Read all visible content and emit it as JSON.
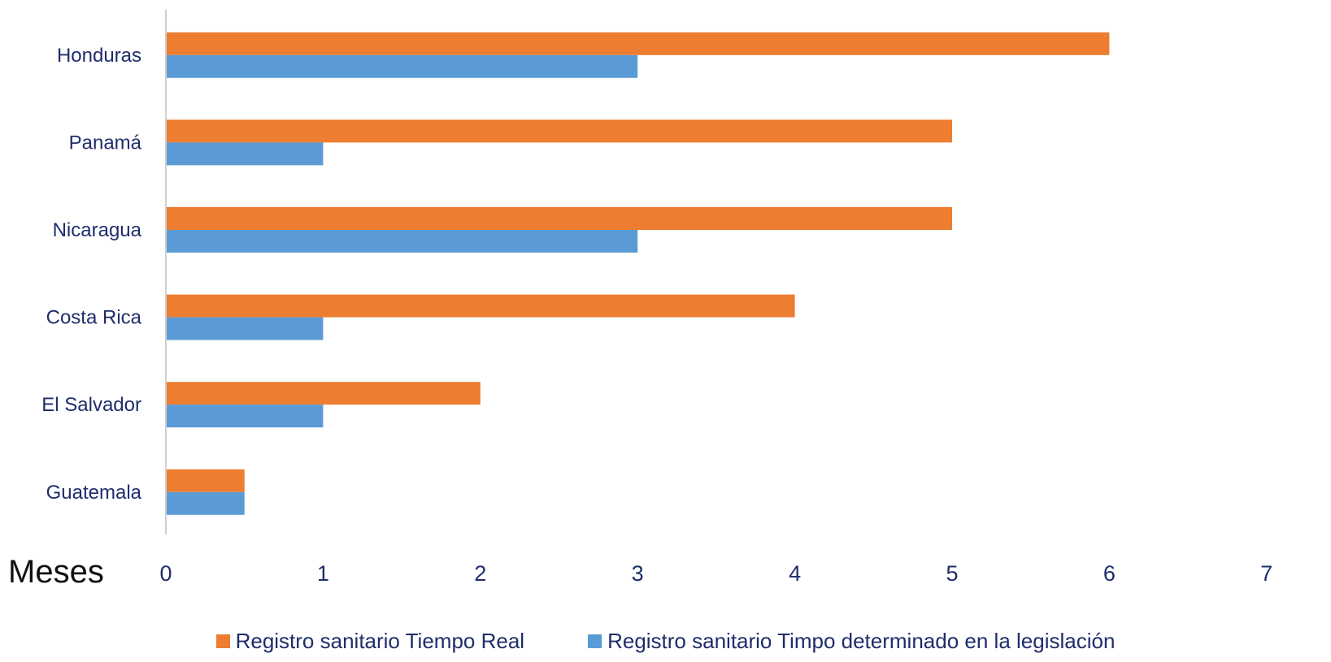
{
  "chart_data": {
    "type": "bar",
    "orientation": "horizontal",
    "categories": [
      "Guatemala",
      "El Salvador",
      "Costa Rica",
      "Nicaragua",
      "Panamá",
      "Honduras"
    ],
    "series": [
      {
        "name": "Registro sanitario Tiempo Real",
        "color": "#ED7D31",
        "values": [
          0.5,
          2,
          4,
          5,
          5,
          6
        ]
      },
      {
        "name": "Registro sanitario Timpo determinado en la legislación",
        "color": "#5B9BD5",
        "values": [
          0.5,
          1,
          1,
          3,
          1,
          3
        ]
      }
    ],
    "xlabel": "Meses",
    "xlim": [
      0,
      7
    ],
    "xticks": [
      "0",
      "1",
      "2",
      "3",
      "4",
      "5",
      "6",
      "7"
    ],
    "grid": false,
    "legend_position": "bottom"
  }
}
